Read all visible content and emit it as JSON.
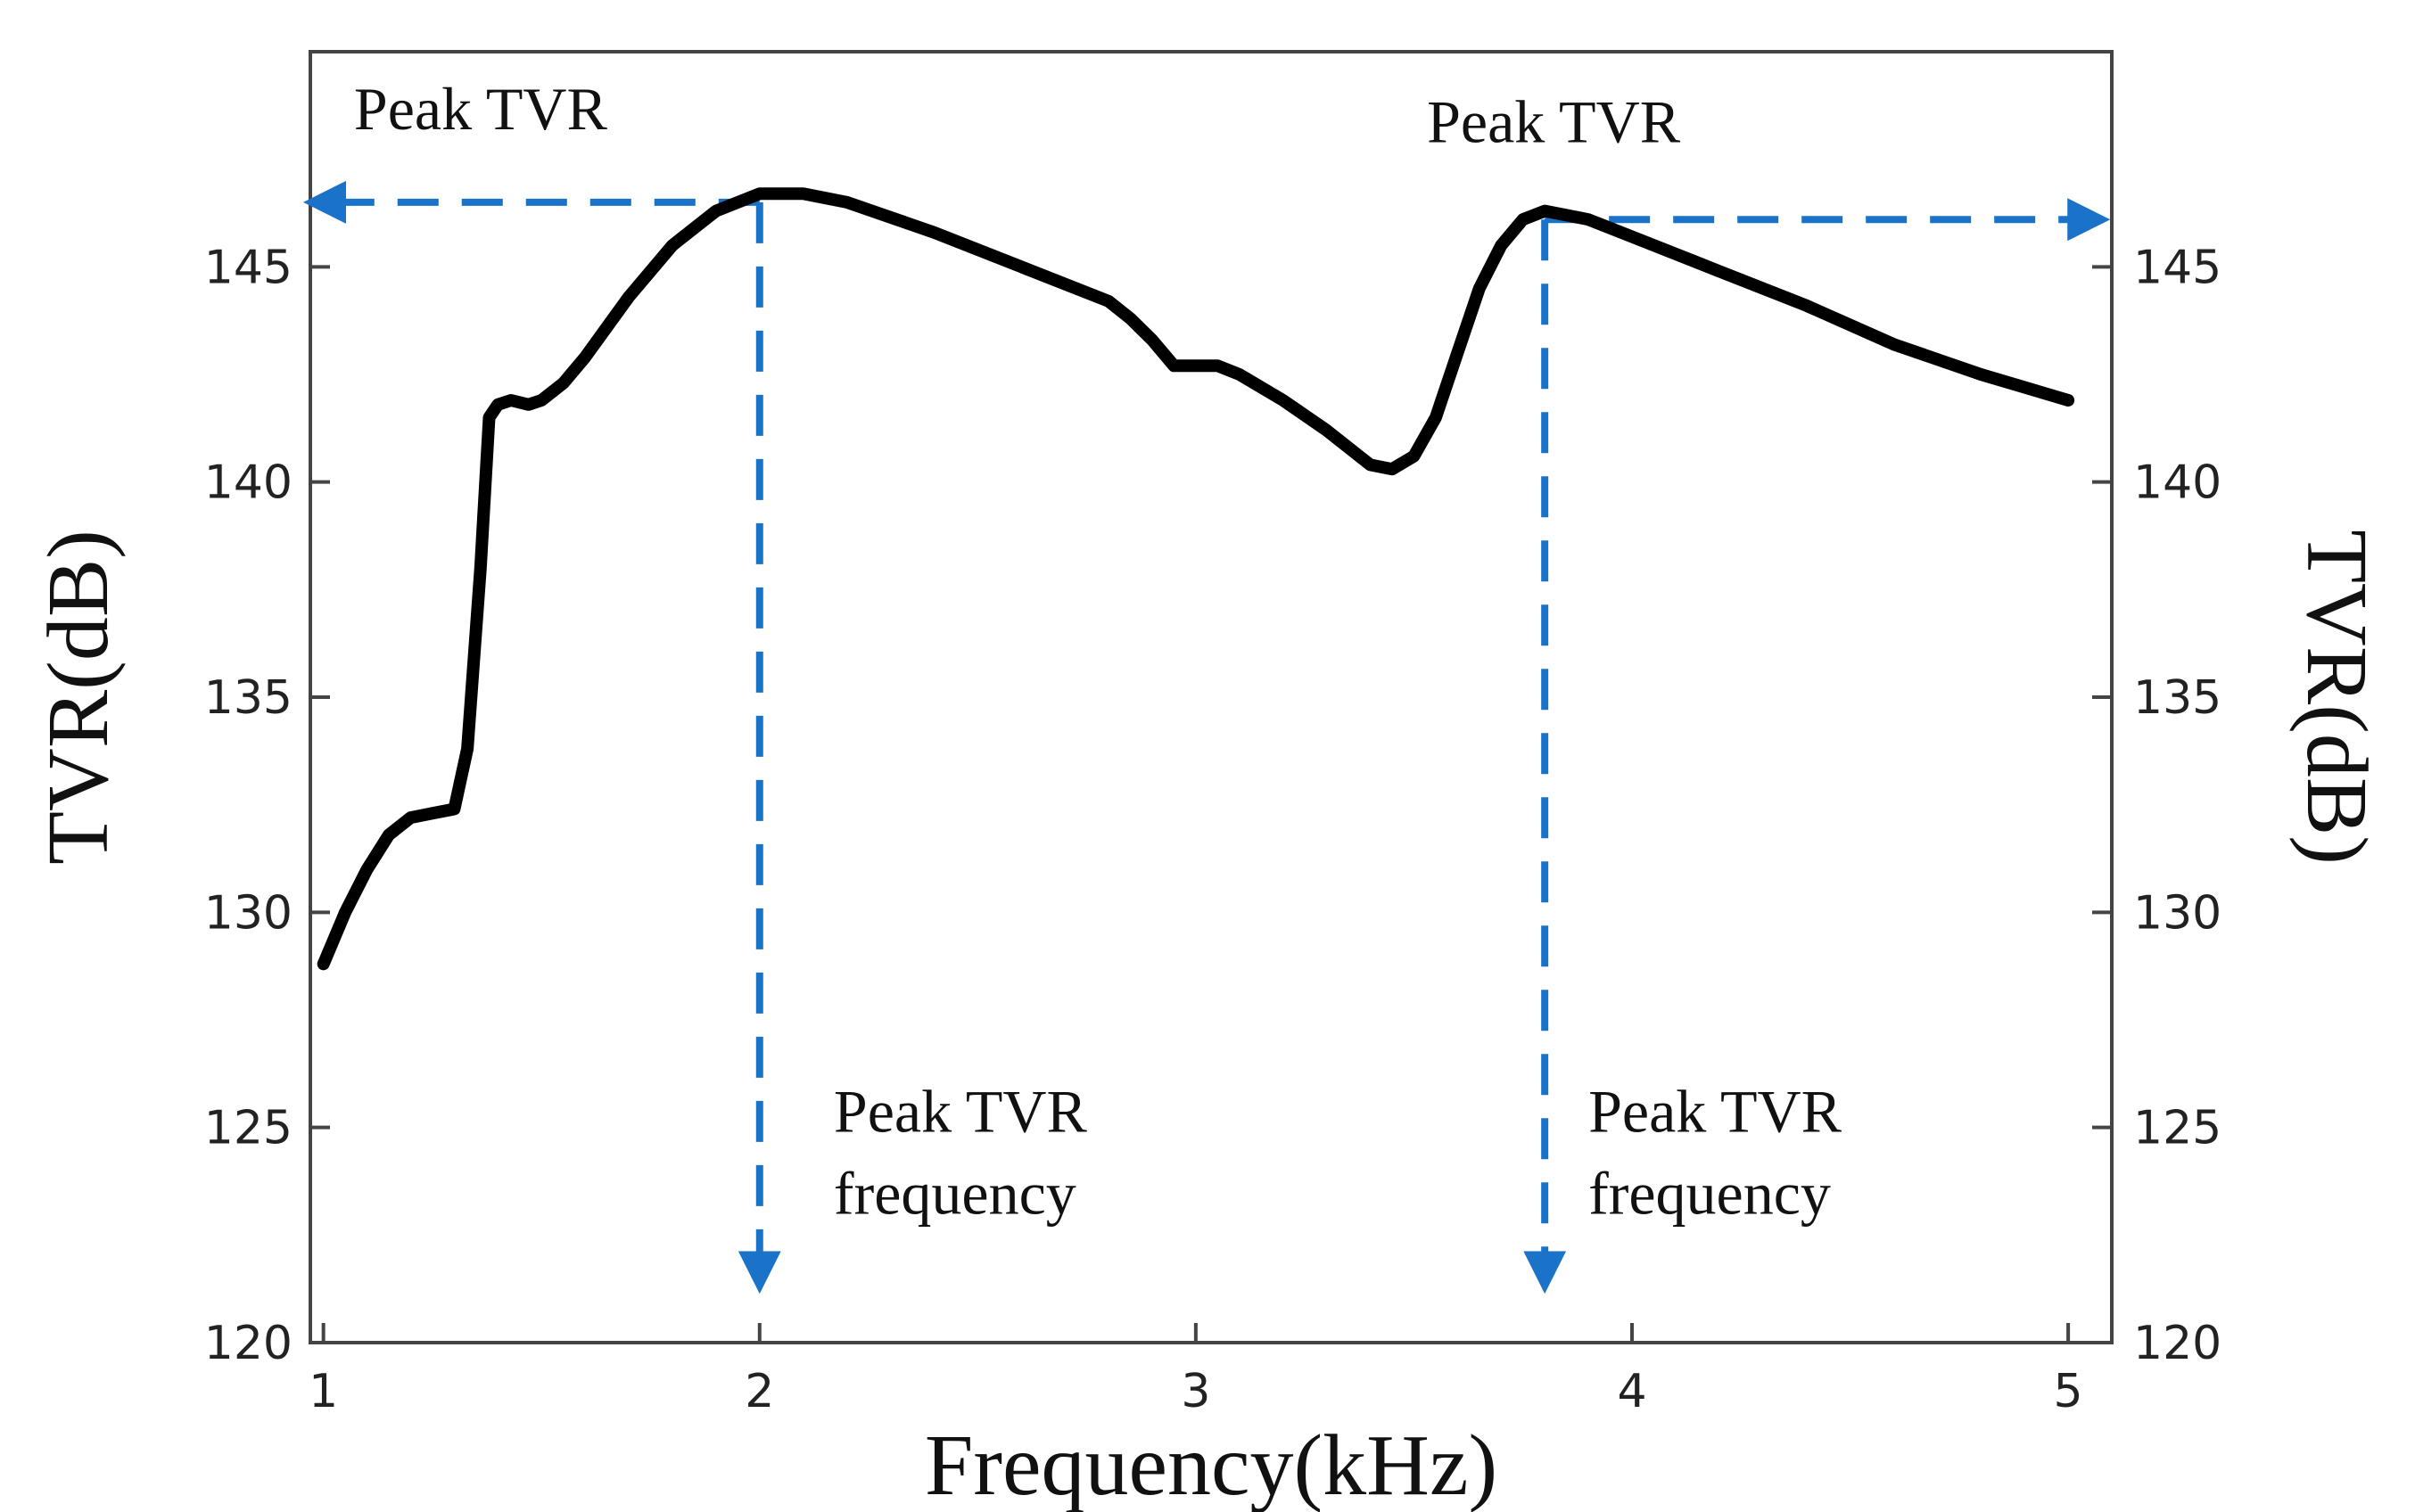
{
  "chart_data": {
    "type": "line",
    "title": "",
    "xlabel": "Frequency(kHz)",
    "ylabel_left": "TVR(dB)",
    "ylabel_right": "TVR(dB)",
    "xlim": [
      0.97,
      5.1
    ],
    "ylim": [
      120,
      150
    ],
    "xticks": [
      1,
      2,
      3,
      4,
      5
    ],
    "yticks": [
      120,
      125,
      130,
      135,
      140,
      145
    ],
    "grid": false,
    "series": [
      {
        "name": "TVR",
        "color": "#000000",
        "x": [
          1.0,
          1.05,
          1.1,
          1.15,
          1.2,
          1.25,
          1.3,
          1.33,
          1.36,
          1.38,
          1.4,
          1.43,
          1.47,
          1.5,
          1.55,
          1.6,
          1.7,
          1.8,
          1.9,
          2.0,
          2.1,
          2.2,
          2.4,
          2.6,
          2.8,
          2.85,
          2.9,
          2.95,
          3.0,
          3.05,
          3.1,
          3.2,
          3.3,
          3.4,
          3.45,
          3.5,
          3.55,
          3.6,
          3.65,
          3.7,
          3.75,
          3.8,
          3.9,
          4.0,
          4.2,
          4.4,
          4.6,
          4.8,
          5.0
        ],
        "y": [
          128.8,
          130.0,
          131.0,
          131.8,
          132.2,
          132.3,
          132.4,
          133.8,
          138.0,
          141.5,
          141.8,
          141.9,
          141.8,
          141.9,
          142.3,
          142.9,
          144.3,
          145.5,
          146.3,
          146.7,
          146.7,
          146.5,
          145.8,
          145.0,
          144.2,
          143.8,
          143.3,
          142.7,
          142.7,
          142.7,
          142.5,
          141.9,
          141.2,
          140.4,
          140.3,
          140.6,
          141.5,
          143.0,
          144.5,
          145.5,
          146.1,
          146.3,
          146.1,
          145.7,
          144.9,
          144.1,
          143.2,
          142.5,
          141.9
        ]
      }
    ],
    "annotations": [
      {
        "id": "peak1_tvr",
        "text": "Peak TVR",
        "x": 1.07,
        "y": 148.2,
        "kind": "label"
      },
      {
        "id": "peak2_tvr",
        "text": "Peak TVR",
        "x": 3.53,
        "y": 147.9,
        "kind": "label"
      },
      {
        "id": "peak1_freq",
        "line1": "Peak TVR",
        "line2": "frequency",
        "x": 2.17,
        "y": 124.9,
        "kind": "label"
      },
      {
        "id": "peak2_freq",
        "line1": "Peak TVR",
        "line2": "frequency",
        "x": 3.9,
        "y": 124.9,
        "kind": "label"
      }
    ],
    "arrows": [
      {
        "id": "peak1-horizontal",
        "from": [
          2.0,
          146.5
        ],
        "to": [
          0.97,
          146.5
        ],
        "color": "#1a73c8",
        "dashed": true
      },
      {
        "id": "peak1-vertical",
        "from": [
          2.0,
          146.5
        ],
        "to": [
          2.0,
          121.3
        ],
        "color": "#1a73c8",
        "dashed": true
      },
      {
        "id": "peak2-horizontal",
        "from": [
          3.8,
          146.1
        ],
        "to": [
          5.08,
          146.1
        ],
        "color": "#1a73c8",
        "dashed": true
      },
      {
        "id": "peak2-vertical",
        "from": [
          3.8,
          146.1
        ],
        "to": [
          3.8,
          121.3
        ],
        "color": "#1a73c8",
        "dashed": true
      }
    ]
  }
}
